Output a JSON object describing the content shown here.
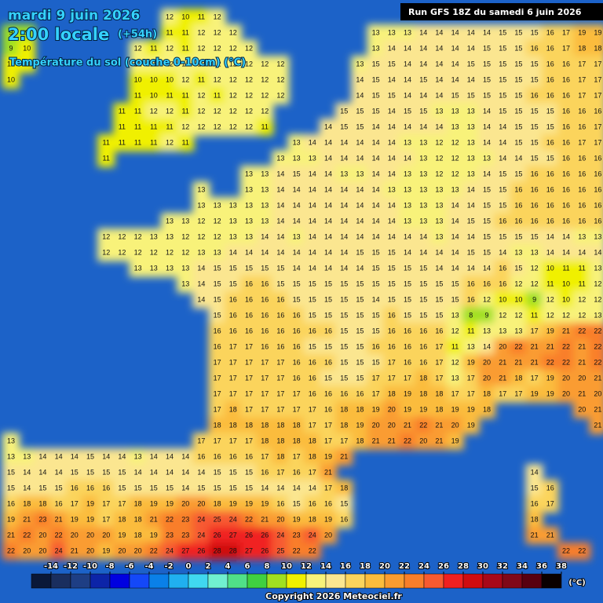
{
  "header": {
    "date": "mardi 9 juin 2026",
    "time": "2:00 locale",
    "lead": "(+54h)",
    "subtitle": "Température du sol (couche 0-10cm) (°C)",
    "run": "Run GFS 18Z du samedi 6 juin 2026"
  },
  "map": {
    "sea_color": "#1c62c8",
    "grid": [
      [
        null,
        null,
        null,
        null,
        null,
        null,
        null,
        null,
        null,
        null,
        12,
        10,
        11,
        12,
        null,
        null,
        null,
        null,
        null,
        null,
        null,
        null,
        null,
        null,
        null,
        null,
        null,
        null,
        null,
        null,
        null,
        null,
        null,
        null,
        null,
        null,
        null,
        null
      ],
      [
        9,
        9,
        null,
        null,
        null,
        null,
        null,
        null,
        null,
        null,
        11,
        11,
        12,
        12,
        12,
        null,
        null,
        null,
        null,
        null,
        null,
        null,
        null,
        13,
        13,
        13,
        14,
        14,
        14,
        14,
        14,
        15,
        15,
        15,
        16,
        17,
        19,
        19
      ],
      [
        9,
        10,
        null,
        null,
        null,
        null,
        null,
        null,
        12,
        11,
        12,
        11,
        12,
        12,
        12,
        12,
        null,
        null,
        null,
        null,
        null,
        null,
        null,
        13,
        14,
        14,
        14,
        14,
        14,
        14,
        15,
        15,
        15,
        16,
        16,
        17,
        18,
        18
      ],
      [
        10,
        10,
        null,
        null,
        null,
        null,
        null,
        null,
        12,
        12,
        12,
        12,
        12,
        12,
        12,
        12,
        12,
        12,
        null,
        null,
        null,
        null,
        13,
        15,
        15,
        14,
        14,
        14,
        14,
        15,
        15,
        15,
        15,
        15,
        16,
        16,
        17,
        17
      ],
      [
        10,
        null,
        null,
        null,
        null,
        null,
        null,
        null,
        10,
        10,
        10,
        12,
        11,
        12,
        12,
        12,
        12,
        12,
        null,
        null,
        null,
        null,
        14,
        15,
        14,
        14,
        15,
        14,
        14,
        14,
        15,
        15,
        15,
        15,
        16,
        16,
        17,
        17
      ],
      [
        null,
        null,
        null,
        null,
        null,
        null,
        null,
        null,
        11,
        10,
        11,
        11,
        12,
        11,
        12,
        12,
        12,
        12,
        null,
        null,
        null,
        null,
        14,
        15,
        15,
        14,
        14,
        14,
        15,
        15,
        15,
        15,
        15,
        16,
        16,
        16,
        17,
        17
      ],
      [
        null,
        null,
        null,
        null,
        null,
        null,
        null,
        11,
        11,
        12,
        12,
        11,
        12,
        12,
        12,
        12,
        12,
        null,
        null,
        null,
        null,
        15,
        15,
        15,
        14,
        15,
        15,
        13,
        13,
        13,
        14,
        15,
        15,
        15,
        15,
        16,
        16,
        16
      ],
      [
        null,
        null,
        null,
        null,
        null,
        null,
        null,
        11,
        11,
        11,
        11,
        12,
        12,
        12,
        12,
        12,
        11,
        null,
        null,
        null,
        14,
        15,
        15,
        14,
        14,
        14,
        14,
        14,
        13,
        13,
        14,
        14,
        15,
        15,
        15,
        16,
        16,
        17
      ],
      [
        null,
        null,
        null,
        null,
        null,
        null,
        11,
        11,
        11,
        11,
        12,
        11,
        null,
        null,
        null,
        null,
        null,
        null,
        13,
        14,
        14,
        14,
        14,
        14,
        14,
        13,
        13,
        12,
        12,
        13,
        14,
        14,
        15,
        15,
        16,
        16,
        17,
        17
      ],
      [
        null,
        null,
        null,
        null,
        null,
        null,
        11,
        null,
        null,
        null,
        null,
        null,
        null,
        null,
        null,
        null,
        null,
        13,
        13,
        13,
        14,
        14,
        14,
        14,
        14,
        14,
        13,
        12,
        12,
        13,
        13,
        14,
        14,
        15,
        15,
        16,
        16,
        16
      ],
      [
        null,
        null,
        null,
        null,
        null,
        null,
        null,
        null,
        null,
        null,
        null,
        null,
        null,
        null,
        null,
        13,
        13,
        14,
        15,
        14,
        14,
        13,
        13,
        14,
        14,
        13,
        13,
        12,
        12,
        13,
        14,
        15,
        15,
        16,
        16,
        16,
        16,
        16
      ],
      [
        null,
        null,
        null,
        null,
        null,
        null,
        null,
        null,
        null,
        null,
        null,
        null,
        13,
        null,
        null,
        13,
        13,
        14,
        14,
        14,
        14,
        14,
        14,
        14,
        13,
        13,
        13,
        13,
        13,
        14,
        15,
        15,
        16,
        16,
        16,
        16,
        16,
        16
      ],
      [
        null,
        null,
        null,
        null,
        null,
        null,
        null,
        null,
        null,
        null,
        null,
        null,
        13,
        13,
        13,
        13,
        13,
        14,
        14,
        14,
        14,
        14,
        14,
        14,
        14,
        13,
        13,
        13,
        14,
        14,
        15,
        15,
        16,
        16,
        16,
        16,
        16,
        16
      ],
      [
        null,
        null,
        null,
        null,
        null,
        null,
        null,
        null,
        null,
        null,
        13,
        13,
        12,
        12,
        13,
        13,
        13,
        14,
        14,
        14,
        14,
        14,
        14,
        14,
        14,
        13,
        13,
        13,
        14,
        15,
        15,
        16,
        16,
        16,
        16,
        16,
        16,
        16
      ],
      [
        null,
        null,
        null,
        null,
        null,
        null,
        12,
        12,
        12,
        13,
        13,
        12,
        12,
        12,
        13,
        13,
        14,
        14,
        13,
        14,
        14,
        14,
        14,
        14,
        14,
        14,
        14,
        13,
        14,
        14,
        15,
        15,
        15,
        15,
        14,
        14,
        13,
        13
      ],
      [
        null,
        null,
        null,
        null,
        null,
        null,
        12,
        12,
        12,
        12,
        12,
        12,
        13,
        13,
        14,
        14,
        14,
        14,
        14,
        14,
        14,
        14,
        15,
        15,
        15,
        14,
        14,
        14,
        14,
        15,
        15,
        14,
        13,
        13,
        14,
        14,
        14,
        14
      ],
      [
        null,
        null,
        null,
        null,
        null,
        null,
        null,
        null,
        13,
        13,
        13,
        13,
        14,
        15,
        15,
        15,
        15,
        15,
        14,
        14,
        14,
        14,
        14,
        15,
        15,
        15,
        15,
        14,
        14,
        14,
        14,
        16,
        15,
        12,
        10,
        11,
        11,
        13
      ],
      [
        null,
        null,
        null,
        null,
        null,
        null,
        null,
        null,
        null,
        null,
        null,
        13,
        14,
        15,
        15,
        16,
        16,
        15,
        15,
        15,
        15,
        15,
        15,
        15,
        15,
        15,
        15,
        15,
        15,
        16,
        16,
        16,
        12,
        12,
        11,
        10,
        11,
        12
      ],
      [
        null,
        null,
        null,
        null,
        null,
        null,
        null,
        null,
        null,
        null,
        null,
        null,
        14,
        15,
        16,
        16,
        16,
        16,
        15,
        15,
        15,
        15,
        15,
        14,
        15,
        15,
        15,
        15,
        15,
        16,
        12,
        10,
        10,
        9,
        12,
        10,
        12,
        12
      ],
      [
        null,
        null,
        null,
        null,
        null,
        null,
        null,
        null,
        null,
        null,
        null,
        null,
        null,
        15,
        16,
        16,
        16,
        16,
        16,
        15,
        15,
        15,
        15,
        15,
        16,
        15,
        15,
        15,
        13,
        8,
        9,
        12,
        12,
        11,
        12,
        12,
        12,
        13
      ],
      [
        null,
        null,
        null,
        null,
        null,
        null,
        null,
        null,
        null,
        null,
        null,
        null,
        null,
        16,
        16,
        16,
        16,
        16,
        16,
        16,
        16,
        15,
        15,
        15,
        16,
        16,
        16,
        16,
        12,
        11,
        13,
        13,
        13,
        17,
        19,
        21,
        22,
        22
      ],
      [
        null,
        null,
        null,
        null,
        null,
        null,
        null,
        null,
        null,
        null,
        null,
        null,
        null,
        16,
        17,
        17,
        16,
        16,
        16,
        15,
        15,
        15,
        15,
        16,
        16,
        16,
        16,
        17,
        11,
        13,
        14,
        20,
        22,
        21,
        21,
        22,
        21,
        22
      ],
      [
        null,
        null,
        null,
        null,
        null,
        null,
        null,
        null,
        null,
        null,
        null,
        null,
        null,
        17,
        17,
        17,
        17,
        17,
        16,
        16,
        16,
        15,
        15,
        15,
        17,
        16,
        16,
        17,
        12,
        19,
        20,
        21,
        21,
        21,
        22,
        22,
        21,
        22
      ],
      [
        null,
        null,
        null,
        null,
        null,
        null,
        null,
        null,
        null,
        null,
        null,
        null,
        null,
        17,
        17,
        17,
        17,
        17,
        16,
        16,
        15,
        15,
        15,
        17,
        17,
        17,
        18,
        17,
        13,
        17,
        20,
        21,
        18,
        17,
        19,
        20,
        20,
        21
      ],
      [
        null,
        null,
        null,
        null,
        null,
        null,
        null,
        null,
        null,
        null,
        null,
        null,
        null,
        17,
        17,
        17,
        17,
        17,
        17,
        16,
        16,
        16,
        16,
        17,
        18,
        19,
        18,
        18,
        17,
        17,
        18,
        17,
        17,
        19,
        19,
        20,
        21,
        20
      ],
      [
        null,
        null,
        null,
        null,
        null,
        null,
        null,
        null,
        null,
        null,
        null,
        null,
        null,
        17,
        18,
        17,
        17,
        17,
        17,
        17,
        16,
        18,
        18,
        19,
        20,
        19,
        19,
        18,
        19,
        19,
        18,
        null,
        null,
        null,
        null,
        null,
        20,
        21
      ],
      [
        null,
        null,
        null,
        null,
        null,
        null,
        null,
        null,
        null,
        null,
        null,
        null,
        null,
        18,
        18,
        18,
        18,
        18,
        18,
        17,
        17,
        18,
        19,
        20,
        20,
        21,
        22,
        21,
        20,
        19,
        null,
        null,
        null,
        null,
        null,
        null,
        null,
        21
      ],
      [
        13,
        null,
        null,
        null,
        null,
        null,
        null,
        null,
        null,
        null,
        null,
        null,
        17,
        17,
        17,
        17,
        18,
        18,
        18,
        18,
        17,
        17,
        18,
        21,
        21,
        22,
        20,
        21,
        19,
        null,
        null,
        null,
        null,
        null,
        null,
        null,
        null,
        null
      ],
      [
        13,
        13,
        14,
        14,
        14,
        15,
        14,
        14,
        13,
        14,
        14,
        14,
        16,
        16,
        16,
        16,
        17,
        18,
        17,
        18,
        19,
        21,
        null,
        null,
        null,
        null,
        null,
        null,
        null,
        null,
        null,
        null,
        null,
        null,
        null,
        null,
        null,
        null
      ],
      [
        15,
        14,
        14,
        14,
        15,
        15,
        15,
        15,
        14,
        14,
        14,
        14,
        14,
        15,
        15,
        15,
        16,
        17,
        16,
        17,
        21,
        null,
        null,
        null,
        null,
        null,
        null,
        null,
        null,
        null,
        null,
        null,
        null,
        14,
        null,
        null,
        null,
        null
      ],
      [
        15,
        14,
        15,
        15,
        16,
        16,
        16,
        15,
        15,
        15,
        15,
        14,
        15,
        15,
        15,
        15,
        14,
        14,
        14,
        14,
        17,
        18,
        null,
        null,
        null,
        null,
        null,
        null,
        null,
        null,
        null,
        null,
        null,
        15,
        16,
        null,
        null,
        null
      ],
      [
        16,
        18,
        18,
        16,
        17,
        19,
        17,
        17,
        18,
        19,
        19,
        20,
        20,
        18,
        19,
        19,
        19,
        16,
        15,
        16,
        16,
        15,
        null,
        null,
        null,
        null,
        null,
        null,
        null,
        null,
        null,
        null,
        null,
        16,
        17,
        null,
        null,
        null
      ],
      [
        19,
        21,
        23,
        21,
        19,
        19,
        17,
        18,
        18,
        21,
        22,
        23,
        24,
        25,
        24,
        22,
        21,
        20,
        19,
        18,
        19,
        16,
        null,
        null,
        null,
        null,
        null,
        null,
        null,
        null,
        null,
        null,
        null,
        18,
        null,
        null,
        null,
        null
      ],
      [
        21,
        22,
        20,
        22,
        20,
        20,
        20,
        19,
        18,
        19,
        23,
        23,
        24,
        26,
        27,
        26,
        26,
        24,
        23,
        24,
        20,
        null,
        null,
        null,
        null,
        null,
        null,
        null,
        null,
        null,
        null,
        null,
        null,
        21,
        21,
        null,
        null,
        null
      ],
      [
        22,
        20,
        20,
        24,
        21,
        20,
        19,
        20,
        20,
        22,
        24,
        27,
        26,
        28,
        28,
        27,
        26,
        25,
        22,
        22,
        null,
        null,
        null,
        null,
        null,
        null,
        null,
        null,
        null,
        null,
        null,
        null,
        null,
        null,
        null,
        22,
        22,
        null
      ]
    ]
  },
  "colorbar": {
    "ticks": [
      -14,
      -12,
      -10,
      -8,
      -6,
      -4,
      -2,
      0,
      2,
      4,
      6,
      8,
      10,
      12,
      14,
      16,
      18,
      20,
      22,
      24,
      26,
      28,
      30,
      32,
      34,
      36,
      38
    ],
    "colors": [
      "#0a1838",
      "#1a2e5e",
      "#1e3e84",
      "#0c24a8",
      "#0000e0",
      "#1448f8",
      "#0a80e8",
      "#20b0f0",
      "#40d8f0",
      "#70f0d0",
      "#50e088",
      "#40d040",
      "#a0e020",
      "#f0f000",
      "#f8f27a",
      "#fbe690",
      "#fbd45c",
      "#fbbc3c",
      "#fa9c30",
      "#f97e2a",
      "#f75a30",
      "#f02020",
      "#d00c10",
      "#a80818",
      "#800818",
      "#580010",
      "#0a0000"
    ],
    "unit": "(°C)"
  },
  "footer": {
    "copyright": "Copyright 2026 Meteociel.fr"
  }
}
